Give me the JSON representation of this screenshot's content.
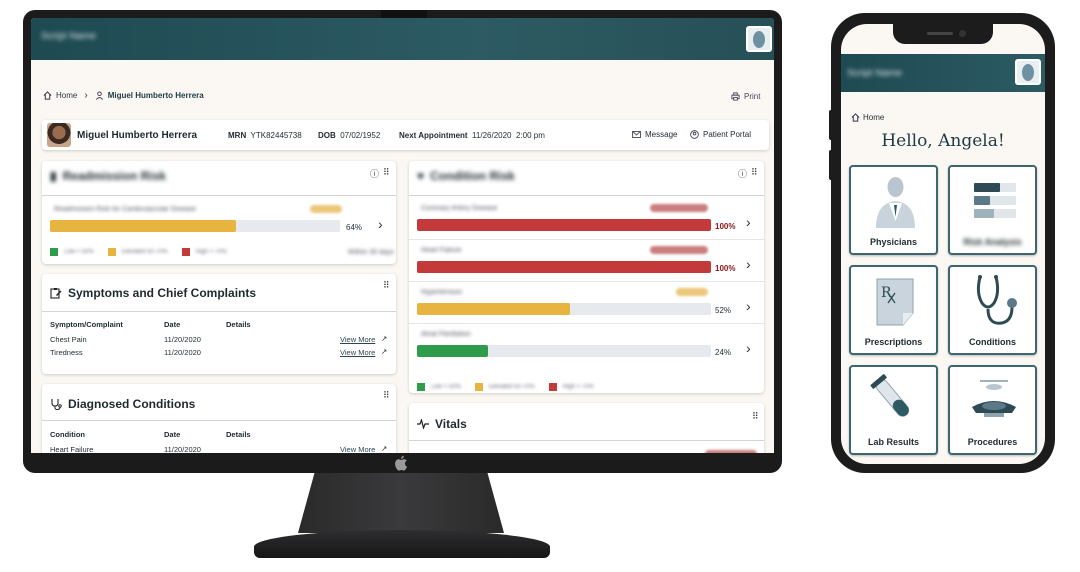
{
  "desktop": {
    "brand": "Script Name",
    "breadcrumb": {
      "home": "Home",
      "current": "Miguel Humberto Herrera"
    },
    "print_label": "Print",
    "patient": {
      "name": "Miguel Humberto Herrera",
      "mrn_label": "MRN",
      "mrn": "YTK82445738",
      "dob_label": "DOB",
      "dob": "07/02/1952",
      "appt_label": "Next Appointment",
      "appt_date": "11/26/2020",
      "appt_time": "2:00 pm",
      "message_label": "Message",
      "portal_label": "Patient Portal"
    },
    "readmission": {
      "title": "Readmission Risk",
      "rows": [
        {
          "label": "Readmission Risk for Cardiovascular Disease",
          "value": 64,
          "pct_text": "64%",
          "color": "#e8b440"
        }
      ],
      "legend": [
        "Low < 50%",
        "Elevated 50-70%",
        "High > 70%"
      ],
      "footnote": "Within 30 days"
    },
    "condition_risk": {
      "title": "Condition Risk",
      "rows": [
        {
          "label": "Coronary Artery Disease",
          "value": 100,
          "pct_text": "100%",
          "color": "#c43a3a",
          "pill": "#c97d7d"
        },
        {
          "label": "Heart Failure",
          "value": 100,
          "pct_text": "100%",
          "color": "#c43a3a",
          "pill": "#c97d7d"
        },
        {
          "label": "Hypertension",
          "value": 52,
          "pct_text": "52%",
          "color": "#e8b440",
          "pill": "#ecc77a"
        },
        {
          "label": "Atrial Fibrillation",
          "value": 24,
          "pct_text": "24%",
          "color": "#2e9c4a",
          "pill": "#ffffff"
        }
      ],
      "legend": [
        "Low < 50%",
        "Elevated 50-70%",
        "High > 70%"
      ]
    },
    "symptoms": {
      "title": "Symptoms and Chief Complaints",
      "headers": [
        "Symptom/Complaint",
        "Date",
        "Details"
      ],
      "rows": [
        {
          "name": "Chest Pain",
          "date": "11/20/2020",
          "link": "View More"
        },
        {
          "name": "Tiredness",
          "date": "11/20/2020",
          "link": "View More"
        }
      ]
    },
    "diagnosed": {
      "title": "Diagnosed Conditions",
      "headers": [
        "Condition",
        "Date",
        "Details"
      ],
      "rows": [
        {
          "name": "Heart Failure",
          "date": "11/20/2020",
          "link": "View More"
        }
      ]
    },
    "vitals": {
      "title": "Vitals"
    },
    "colors": {
      "header": "#2d5b63",
      "low": "#2e9c4a",
      "elevated": "#e8b440",
      "high": "#c43a3a"
    }
  },
  "mobile": {
    "brand": "Script Name",
    "home": "Home",
    "greeting": "Hello, Angela!",
    "tiles": [
      {
        "label": "Physicians",
        "icon": "physician-icon"
      },
      {
        "label": "Risk Analysis",
        "icon": "risk-bars-icon"
      },
      {
        "label": "Prescriptions",
        "icon": "prescription-icon"
      },
      {
        "label": "Conditions",
        "icon": "stethoscope-icon"
      },
      {
        "label": "Lab Results",
        "icon": "test-tube-icon"
      },
      {
        "label": "Procedures",
        "icon": "surgery-light-icon"
      }
    ]
  }
}
